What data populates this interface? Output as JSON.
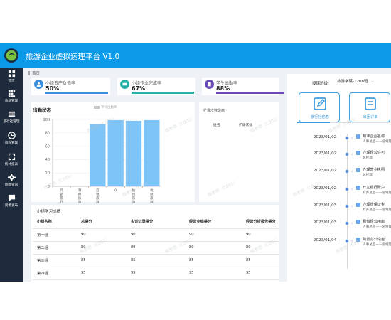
{
  "app": {
    "title": "旅游企业虚拟运理平台 V1.0"
  },
  "sidebar": {
    "items": [
      {
        "label": "首页",
        "icon": "dashboard-icon"
      },
      {
        "label": "系统管理",
        "icon": "grid-icon"
      },
      {
        "label": "旅行社管理",
        "icon": "table-icon"
      },
      {
        "label": "日程管理",
        "icon": "clock-icon"
      },
      {
        "label": "统计报表",
        "icon": "expand-icon"
      },
      {
        "label": "新闻资讯",
        "icon": "gear-icon"
      },
      {
        "label": "资源发布",
        "icon": "chat-icon"
      }
    ]
  },
  "breadcrumb": {
    "current": "首页"
  },
  "cards": [
    {
      "label": "小组资产负债率",
      "value": "50%",
      "color": "#3b8fe0",
      "progress": 0.5,
      "icon": "person-icon"
    },
    {
      "label": "小组作业完成率",
      "value": "67%",
      "color": "#23b3a6",
      "progress": 0.67,
      "icon": "money-icon"
    },
    {
      "label": "学生出勤率",
      "value": "88%",
      "color": "#6a4ab8",
      "progress": 0.88,
      "icon": "book-icon"
    }
  ],
  "chart_data": {
    "type": "bar",
    "title": "出勤状态",
    "legend": "平均出勤率",
    "categories": [
      "凡新旅行社",
      "薄荷旅游",
      "蓝色旅游",
      "0",
      "杭州旅游",
      "杭州旅游"
    ],
    "values": [
      0,
      0,
      93,
      99,
      98,
      99
    ],
    "ylim": [
      0,
      100
    ],
    "yticks": [
      0,
      20,
      40,
      60,
      80,
      100
    ]
  },
  "middle": {
    "title": "扩课次数最高",
    "col1": "姓名",
    "col2": "扩课次数"
  },
  "table": {
    "title": "小组学习成绩",
    "headers": [
      "小组名称",
      "总得分",
      "实训记录得分",
      "经营业绩得分",
      "经营分析报告得分"
    ],
    "rows": [
      [
        "第一组",
        "90",
        "90",
        "90",
        "90"
      ],
      [
        "第二组",
        "89",
        "89",
        "89",
        "89"
      ],
      [
        "第三组",
        "85",
        "85",
        "85",
        "85"
      ],
      [
        "第四组",
        "95",
        "95",
        "95",
        "95"
      ]
    ]
  },
  "right": {
    "search_label": "授课班级:",
    "search_value": "旅游学院-1208班",
    "btn1": "旅行社信息",
    "btn2": "出团订单",
    "timeline": [
      {
        "date": "2023/01/02",
        "t1": "精准企业名称",
        "t2": "人事总监——总经理"
      },
      {
        "date": "2023/01/02",
        "t1": "办理经营许可",
        "t2": "总经理"
      },
      {
        "date": "2023/01/02",
        "t1": "办理营业执照",
        "t2": "总经理"
      },
      {
        "date": "2023/01/02",
        "t1": "开立银行账户",
        "t2": "财务总监——总经理"
      },
      {
        "date": "2023/01/03",
        "t1": "办理质保证金",
        "t2": "财务总监——总经理"
      },
      {
        "date": "2023/01/03",
        "t1": "租借经营用房",
        "t2": "人事总监——总经理"
      },
      {
        "date": "2023/01/04",
        "t1": "购置办公设备",
        "t2": "人事总监——总经理"
      }
    ]
  },
  "watermark": "陈老师（C001）",
  "colors": {
    "topbar": "#0b9ae8",
    "sidebar": "#1d2b3d",
    "bar": "#7fc4f7",
    "accent": "#3b9ae0"
  }
}
